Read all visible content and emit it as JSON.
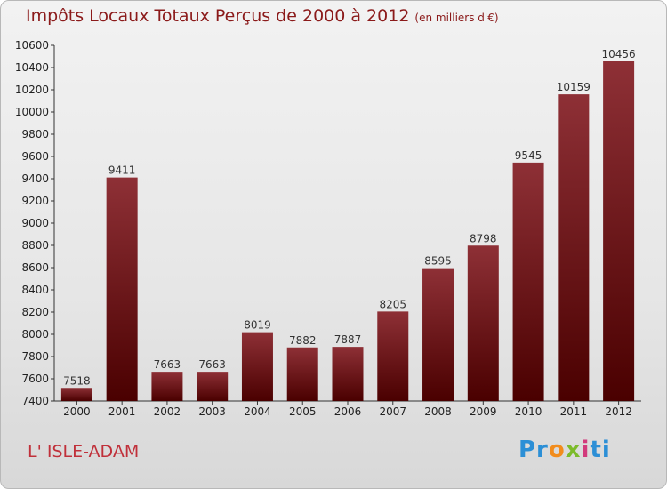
{
  "header": {
    "title": "Impôts Locaux Totaux Perçus de 2000 à 2012",
    "unit": "(en milliers d'€)"
  },
  "footer": {
    "commune": "L' ISLE-ADAM",
    "logo": "Proxiti"
  },
  "colors": {
    "bar_top": "#8e3036",
    "bar_bottom": "#4a0000",
    "title": "#8b1a1a"
  },
  "chart_data": {
    "type": "bar",
    "title": "Impôts Locaux Totaux Perçus de 2000 à 2012",
    "subtitle": "(en milliers d'€)",
    "categories": [
      "2000",
      "2001",
      "2002",
      "2003",
      "2004",
      "2005",
      "2006",
      "2007",
      "2008",
      "2009",
      "2010",
      "2011",
      "2012"
    ],
    "values": [
      7518,
      9411,
      7663,
      7663,
      8019,
      7882,
      7887,
      8205,
      8595,
      8798,
      9545,
      10159,
      10456
    ],
    "ylim": [
      7400,
      10600
    ],
    "yticks": [
      7400,
      7600,
      7800,
      8000,
      8200,
      8400,
      8600,
      8800,
      9000,
      9200,
      9400,
      9600,
      9800,
      10000,
      10200,
      10400,
      10600
    ],
    "grid": false,
    "xlabel": "",
    "ylabel": ""
  }
}
